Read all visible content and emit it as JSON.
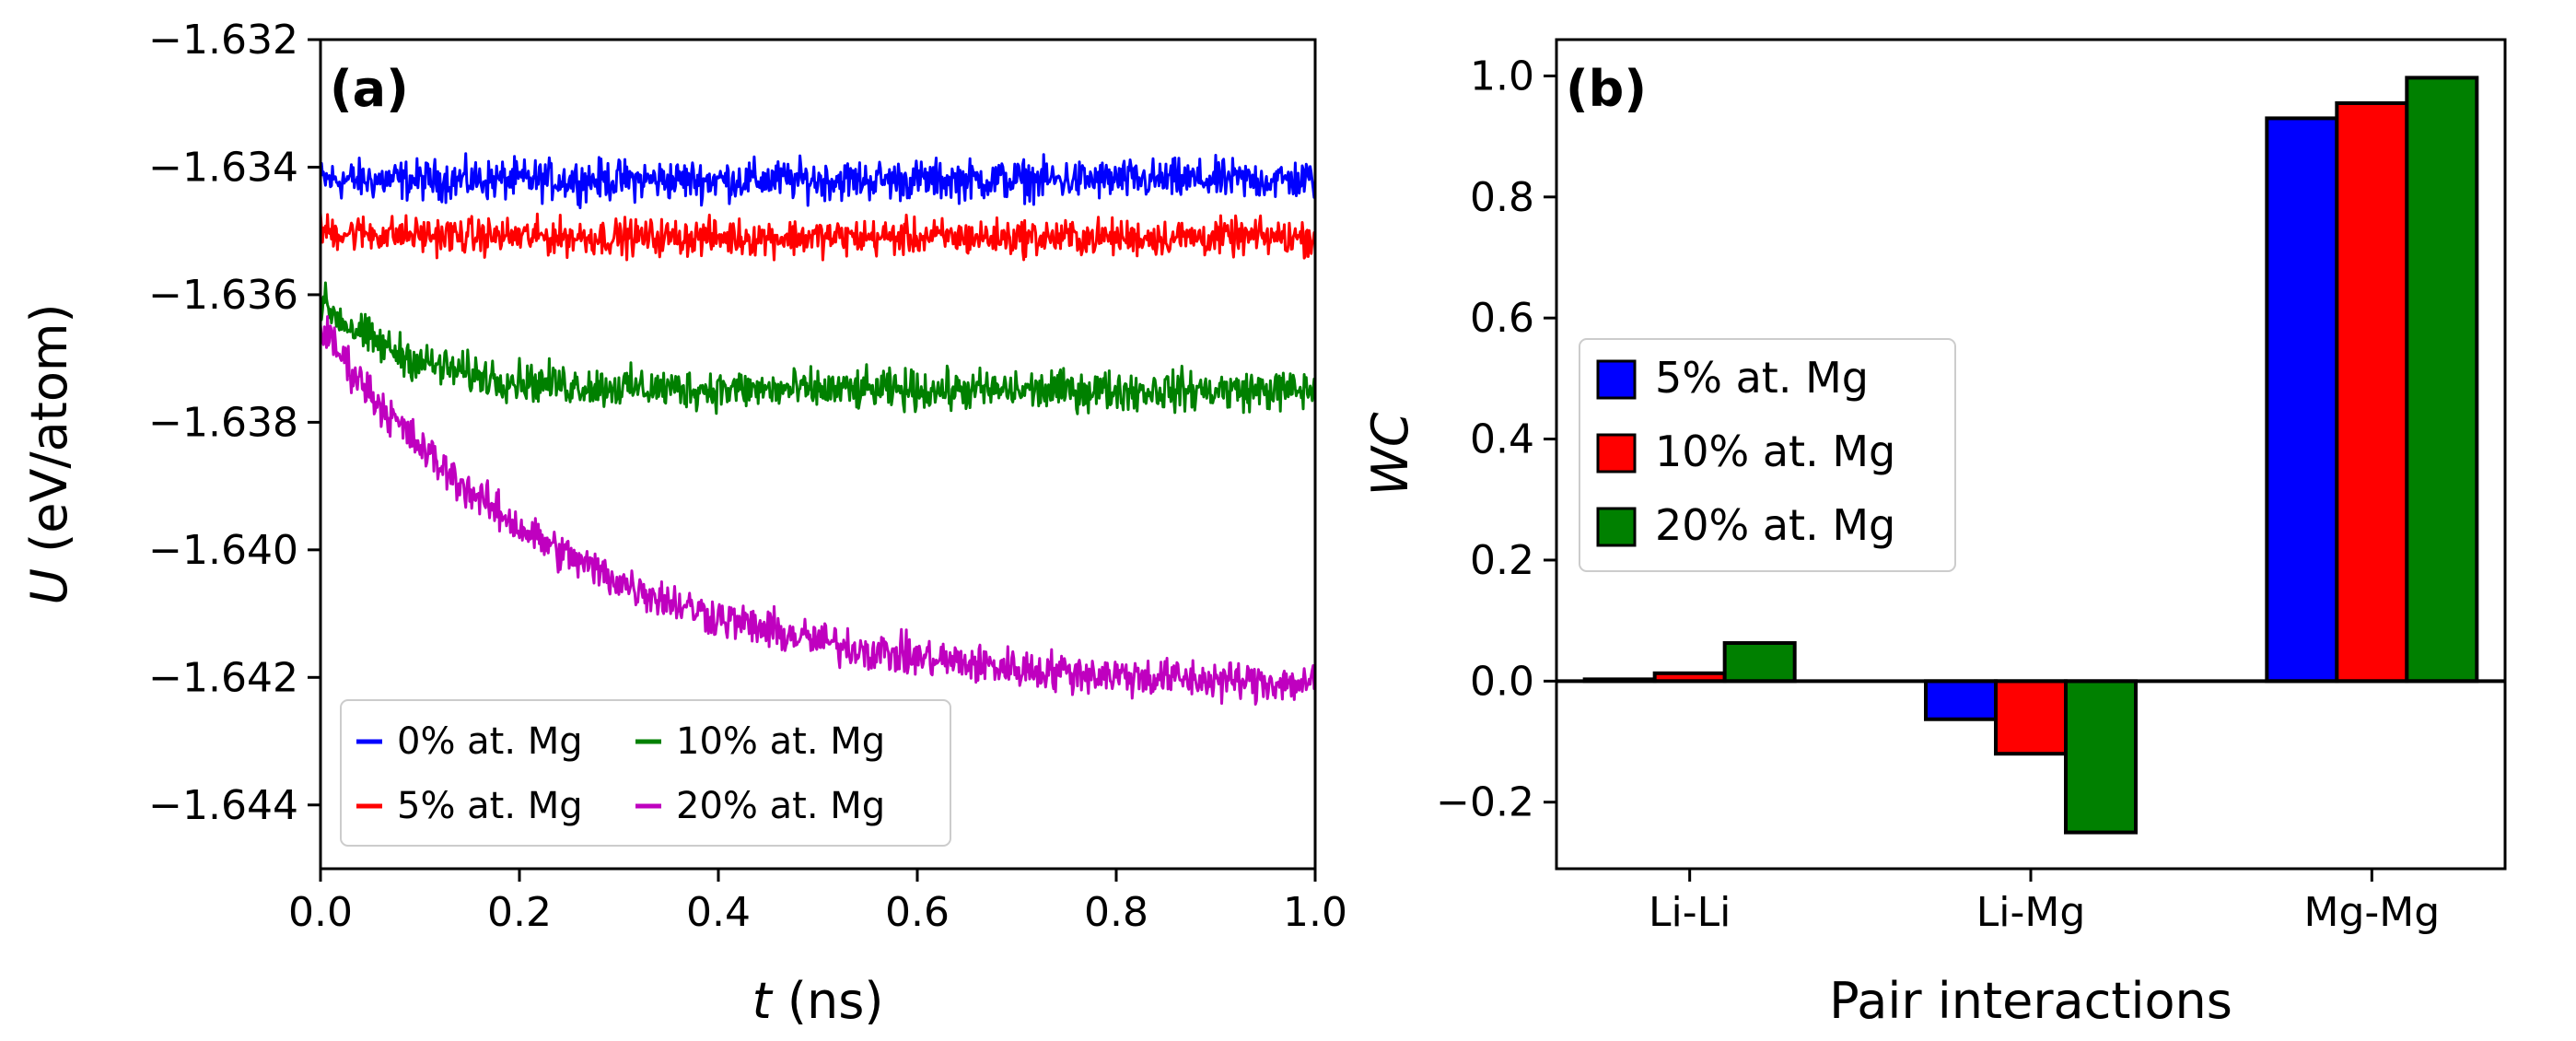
{
  "chart_data": [
    {
      "type": "line",
      "panel_label": "(a)",
      "xlabel_var": "t",
      "xlabel_unit": " (ns)",
      "ylabel_var": "U",
      "ylabel_unit": " (eV/atom)",
      "xlim": [
        0.0,
        1.0
      ],
      "ylim": [
        -1.645,
        -1.632
      ],
      "x_ticks": [
        0.0,
        0.2,
        0.4,
        0.6,
        0.8,
        1.0
      ],
      "x_tick_labels": [
        "0.0",
        "0.2",
        "0.4",
        "0.6",
        "0.8",
        "1.0"
      ],
      "y_ticks": [
        -1.632,
        -1.634,
        -1.636,
        -1.638,
        -1.64,
        -1.642,
        -1.644
      ],
      "y_tick_labels": [
        "−1.632",
        "−1.634",
        "−1.636",
        "−1.638",
        "−1.640",
        "−1.642",
        "−1.644"
      ],
      "legend_position": "lower-left",
      "series": [
        {
          "name": "0% at. Mg",
          "color": "#0000ff",
          "start": -1.6342,
          "end": -1.6342,
          "tau": 0.1,
          "noise": 0.00022
        },
        {
          "name": "5% at. Mg",
          "color": "#ff0000",
          "start": -1.635,
          "end": -1.6351,
          "tau": 0.1,
          "noise": 0.0002
        },
        {
          "name": "10% at. Mg",
          "color": "#008000",
          "start": -1.6361,
          "end": -1.6375,
          "tau": 0.09,
          "noise": 0.00022
        },
        {
          "name": "20% at. Mg",
          "color": "#bf00bf",
          "start": -1.6365,
          "end": -1.6422,
          "tau": 0.25,
          "noise": 0.00022
        }
      ]
    },
    {
      "type": "bar",
      "panel_label": "(b)",
      "xlabel": "Pair interactions",
      "ylabel": "WC",
      "categories": [
        "Li-Li",
        "Li-Mg",
        "Mg-Mg"
      ],
      "ylim": [
        -0.31,
        1.06
      ],
      "y_ticks": [
        -0.2,
        0.0,
        0.2,
        0.4,
        0.6,
        0.8,
        1.0
      ],
      "y_tick_labels": [
        "−0.2",
        "0.0",
        "0.2",
        "0.4",
        "0.6",
        "0.8",
        "1.0"
      ],
      "legend_position": "center-left",
      "series": [
        {
          "name": "5% at. Mg",
          "color": "#0000ff",
          "values": [
            0.003,
            -0.063,
            0.93
          ]
        },
        {
          "name": "10% at. Mg",
          "color": "#ff0000",
          "values": [
            0.013,
            -0.12,
            0.955
          ]
        },
        {
          "name": "20% at. Mg",
          "color": "#008000",
          "values": [
            0.063,
            -0.25,
            0.997
          ]
        }
      ]
    }
  ]
}
